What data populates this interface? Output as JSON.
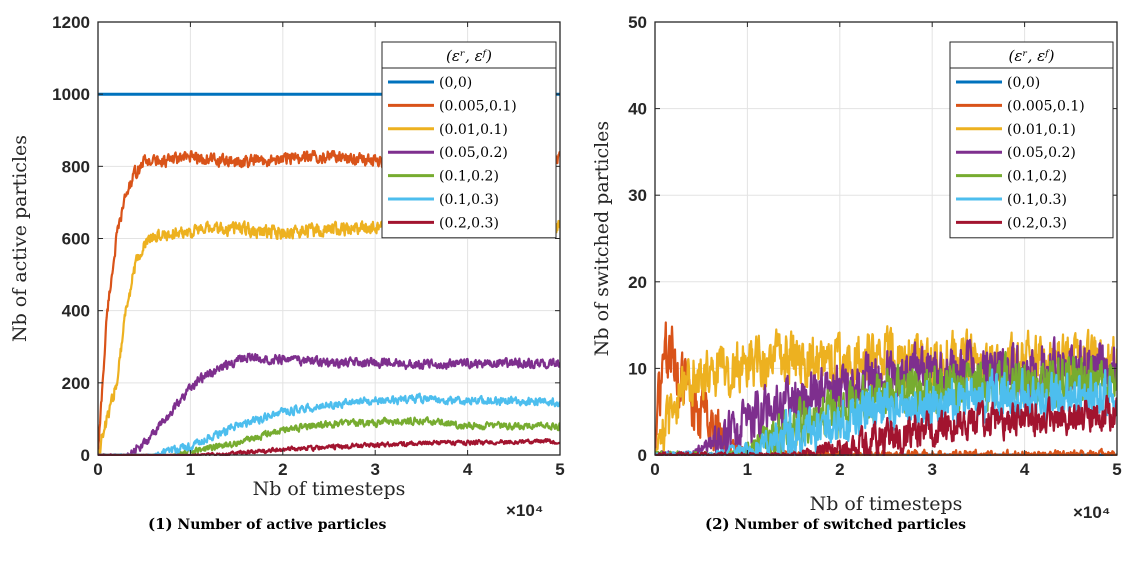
{
  "colors": {
    "s0": "#0072BD",
    "s1": "#D95319",
    "s2": "#EDB120",
    "s3": "#7E2F8E",
    "s4": "#77AC30",
    "s5": "#4DBEEE",
    "s6": "#A2142F"
  },
  "captions": [
    {
      "number": "(1)",
      "text": "Number of active particles"
    },
    {
      "number": "(2)",
      "text": "Number of switched particles"
    }
  ],
  "chart_data": [
    {
      "type": "line",
      "title": "",
      "xlabel": "Nb of timesteps",
      "ylabel": "Nb of active particles",
      "x_exponent": "×10⁴",
      "xlim": [
        0,
        5
      ],
      "ylim": [
        0,
        1200
      ],
      "xticks": [
        "0",
        "1",
        "2",
        "3",
        "4",
        "5"
      ],
      "yticks": [
        "0",
        "200",
        "400",
        "600",
        "800",
        "1000",
        "1200"
      ],
      "grid": true,
      "legend_title": "(εʳ, εᶠ)",
      "legend_position": "top-right",
      "series": [
        {
          "name": "(0,0)",
          "x": [
            0,
            5
          ],
          "y": [
            1000,
            1000
          ],
          "noise": 0
        },
        {
          "name": "(0.005,0.1)",
          "x": [
            0,
            0.1,
            0.2,
            0.3,
            0.4,
            0.5,
            0.7,
            1.0,
            1.5,
            2.0,
            2.5,
            3.0,
            3.5,
            4.0,
            4.5,
            5.0
          ],
          "y": [
            0,
            400,
            600,
            720,
            780,
            815,
            815,
            825,
            810,
            820,
            830,
            815,
            810,
            815,
            810,
            820
          ],
          "noise": 14
        },
        {
          "name": "(0.01,0.1)",
          "x": [
            0,
            0.2,
            0.3,
            0.4,
            0.5,
            0.6,
            0.8,
            1.0,
            1.5,
            2.0,
            2.5,
            3.0,
            3.5,
            4.0,
            4.5,
            5.0
          ],
          "y": [
            0,
            200,
            400,
            520,
            580,
            605,
            615,
            620,
            630,
            615,
            625,
            630,
            630,
            625,
            625,
            630
          ],
          "noise": 16
        },
        {
          "name": "(0.05,0.2)",
          "x": [
            0,
            0.3,
            0.5,
            0.8,
            1.0,
            1.2,
            1.5,
            1.7,
            2.0,
            2.5,
            3.0,
            3.5,
            4.0,
            4.5,
            5.0
          ],
          "y": [
            0,
            0,
            30,
            120,
            190,
            225,
            265,
            270,
            265,
            255,
            255,
            250,
            255,
            255,
            255
          ],
          "noise": 11
        },
        {
          "name": "(0.1,0.2)",
          "x": [
            0,
            0.8,
            1.0,
            1.5,
            2.0,
            2.5,
            3.0,
            3.5,
            4.0,
            4.5,
            5.0
          ],
          "y": [
            0,
            0,
            8,
            35,
            70,
            85,
            90,
            95,
            80,
            80,
            80
          ],
          "noise": 8
        },
        {
          "name": "(0.1,0.3)",
          "x": [
            0,
            0.6,
            1.0,
            1.5,
            2.0,
            2.5,
            3.0,
            3.5,
            4.0,
            4.5,
            5.0
          ],
          "y": [
            0,
            0,
            25,
            80,
            120,
            140,
            150,
            155,
            150,
            150,
            145
          ],
          "noise": 9
        },
        {
          "name": "(0.2,0.3)",
          "x": [
            0,
            1.0,
            1.5,
            2.0,
            2.5,
            3.0,
            3.5,
            4.0,
            4.5,
            5.0
          ],
          "y": [
            0,
            0,
            5,
            15,
            22,
            28,
            32,
            35,
            36,
            38
          ],
          "noise": 5
        }
      ]
    },
    {
      "type": "line",
      "title": "",
      "xlabel": "Nb of timesteps",
      "ylabel": "Nb of switched particles",
      "x_exponent": "×10⁴",
      "xlim": [
        0,
        5
      ],
      "ylim": [
        0,
        50
      ],
      "xticks": [
        "0",
        "1",
        "2",
        "3",
        "4",
        "5"
      ],
      "yticks": [
        "0",
        "10",
        "20",
        "30",
        "40",
        "50"
      ],
      "grid": true,
      "legend_title": "(εʳ, εᶠ)",
      "legend_position": "top-right",
      "series": [
        {
          "name": "(0,0)",
          "x": [
            0,
            5
          ],
          "y": [
            0,
            0
          ],
          "noise": 0
        },
        {
          "name": "(0.005,0.1)",
          "x": [
            0,
            0.05,
            0.1,
            0.15,
            0.25,
            0.4,
            0.6,
            0.8,
            1.0,
            5.0
          ],
          "y": [
            0,
            6,
            11,
            12,
            9,
            6,
            3,
            1,
            0,
            0
          ],
          "noise": 3
        },
        {
          "name": "(0.01,0.1)",
          "x": [
            0,
            0.15,
            0.3,
            0.5,
            1.0,
            1.5,
            2.0,
            2.5,
            3.0,
            3.5,
            4.0,
            4.5,
            5.0
          ],
          "y": [
            0,
            4,
            8,
            9.5,
            10.5,
            11,
            11,
            11,
            11,
            11,
            11,
            11,
            11
          ],
          "noise": 2.5
        },
        {
          "name": "(0.05,0.2)",
          "x": [
            0,
            0.4,
            0.6,
            1.0,
            1.5,
            2.0,
            2.5,
            3.0,
            3.5,
            4.0,
            4.5,
            5.0
          ],
          "y": [
            0,
            0,
            1,
            3.5,
            6,
            8,
            9,
            9.5,
            10,
            10,
            10,
            10
          ],
          "noise": 2.5
        },
        {
          "name": "(0.1,0.2)",
          "x": [
            0,
            0.8,
            1.0,
            1.5,
            2.0,
            2.5,
            3.0,
            3.5,
            4.0,
            4.5,
            5.0
          ],
          "y": [
            0,
            0,
            0.5,
            3,
            5.5,
            7,
            7.5,
            8,
            8.5,
            8.5,
            8.5
          ],
          "noise": 2.2
        },
        {
          "name": "(0.1,0.3)",
          "x": [
            0,
            0.6,
            1.0,
            1.5,
            2.0,
            2.5,
            3.0,
            3.5,
            4.0,
            4.5,
            5.0
          ],
          "y": [
            0,
            0,
            0.5,
            2.5,
            4.5,
            5.5,
            6,
            6.5,
            7,
            7,
            7
          ],
          "noise": 2.2
        },
        {
          "name": "(0.2,0.3)",
          "x": [
            0,
            1.5,
            2.0,
            2.5,
            3.0,
            3.5,
            4.0,
            4.5,
            5.0
          ],
          "y": [
            0,
            0,
            0.8,
            2,
            3,
            3.8,
            4.2,
            4.5,
            4.5
          ],
          "noise": 1.6
        }
      ]
    }
  ]
}
